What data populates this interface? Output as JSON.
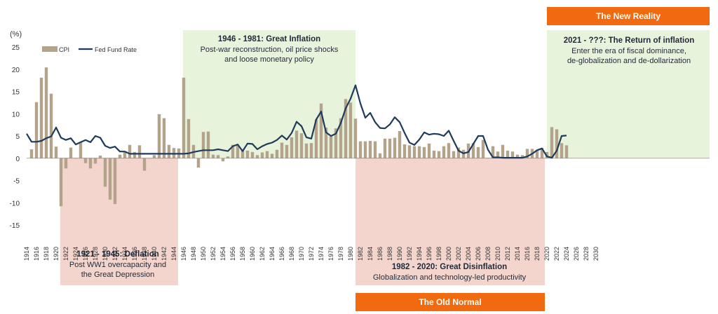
{
  "chart_data": {
    "type": "bar",
    "y_unit_label": "(%)",
    "ylim": [
      -15,
      25
    ],
    "yticks": [
      25,
      20,
      15,
      10,
      5,
      0,
      -5,
      -10,
      -15
    ],
    "xlim": [
      1914,
      2030
    ],
    "x_tick_step": 2,
    "grid": false,
    "legend": {
      "placement": "top-left",
      "items": [
        {
          "name": "CPI",
          "kind": "bar",
          "color": "#b3a38a"
        },
        {
          "name": "Fed Fund Rate",
          "kind": "line",
          "color": "#1f3b5c"
        }
      ]
    },
    "series": [
      {
        "name": "CPI",
        "type": "bar",
        "color": "#b3a38a",
        "x": [
          1915,
          1916,
          1917,
          1918,
          1919,
          1920,
          1921,
          1922,
          1923,
          1924,
          1925,
          1926,
          1927,
          1928,
          1929,
          1930,
          1931,
          1932,
          1933,
          1934,
          1935,
          1936,
          1937,
          1938,
          1939,
          1940,
          1941,
          1942,
          1943,
          1944,
          1945,
          1946,
          1947,
          1948,
          1949,
          1950,
          1951,
          1952,
          1953,
          1954,
          1955,
          1956,
          1957,
          1958,
          1959,
          1960,
          1961,
          1962,
          1963,
          1964,
          1965,
          1966,
          1967,
          1968,
          1969,
          1970,
          1971,
          1972,
          1973,
          1974,
          1975,
          1976,
          1977,
          1978,
          1979,
          1980,
          1981,
          1982,
          1983,
          1984,
          1985,
          1986,
          1987,
          1988,
          1989,
          1990,
          1991,
          1992,
          1993,
          1994,
          1995,
          1996,
          1997,
          1998,
          1999,
          2000,
          2001,
          2002,
          2003,
          2004,
          2005,
          2006,
          2007,
          2008,
          2009,
          2010,
          2011,
          2012,
          2013,
          2014,
          2015,
          2016,
          2017,
          2018,
          2019,
          2020,
          2021,
          2022,
          2023,
          2024
        ],
        "values": [
          2,
          12.6,
          18.1,
          20.4,
          14.5,
          2.6,
          -10.8,
          -2.3,
          2.4,
          0,
          3.5,
          -1.1,
          -2.3,
          -1.2,
          0.6,
          -6.4,
          -9.3,
          -10.3,
          0.8,
          1.5,
          3,
          1.4,
          2.9,
          -2.8,
          0,
          0.7,
          9.9,
          9,
          3,
          2.3,
          2.2,
          18.1,
          8.8,
          3,
          -2.1,
          5.9,
          6,
          0.8,
          0.7,
          -0.7,
          0.4,
          3,
          2.9,
          1.8,
          1.7,
          1.4,
          0.7,
          1.3,
          1.6,
          1,
          1.9,
          3.5,
          3,
          4.7,
          6.2,
          5.6,
          3.3,
          3.4,
          8.7,
          12.3,
          6.9,
          4.9,
          6.7,
          9,
          13.3,
          12.5,
          8.9,
          3.8,
          3.8,
          3.9,
          3.8,
          1.1,
          4.4,
          4.4,
          4.6,
          6.1,
          3.1,
          2.9,
          2.7,
          2.7,
          2.5,
          3.3,
          1.7,
          1.6,
          2.7,
          3.4,
          1.6,
          2.4,
          1.9,
          3.3,
          3.4,
          2.5,
          4.1,
          0.1,
          2.7,
          1.5,
          3,
          1.7,
          1.5,
          0.8,
          0.7,
          2.1,
          2.1,
          1.9,
          2.3,
          1.4,
          7,
          6.5,
          3.4,
          2.9
        ]
      },
      {
        "name": "Fed Fund Rate",
        "type": "line",
        "color": "#1f3b5c",
        "x": [
          1914,
          1915,
          1916,
          1917,
          1918,
          1919,
          1920,
          1921,
          1922,
          1923,
          1924,
          1925,
          1926,
          1927,
          1928,
          1929,
          1930,
          1931,
          1932,
          1933,
          1934,
          1935,
          1936,
          1937,
          1938,
          1939,
          1940,
          1941,
          1942,
          1943,
          1944,
          1945,
          1946,
          1947,
          1948,
          1949,
          1950,
          1951,
          1952,
          1953,
          1954,
          1955,
          1956,
          1957,
          1958,
          1959,
          1960,
          1961,
          1962,
          1963,
          1964,
          1965,
          1966,
          1967,
          1968,
          1969,
          1970,
          1971,
          1972,
          1973,
          1974,
          1975,
          1976,
          1977,
          1978,
          1979,
          1980,
          1981,
          1982,
          1983,
          1984,
          1985,
          1986,
          1987,
          1988,
          1989,
          1990,
          1991,
          1992,
          1993,
          1994,
          1995,
          1996,
          1997,
          1998,
          1999,
          2000,
          2001,
          2002,
          2003,
          2004,
          2005,
          2006,
          2007,
          2008,
          2009,
          2010,
          2011,
          2012,
          2013,
          2014,
          2015,
          2016,
          2017,
          2018,
          2019,
          2020,
          2021,
          2022,
          2023,
          2024
        ],
        "values": [
          5.5,
          3.7,
          3.7,
          3.9,
          4.5,
          4.9,
          6.9,
          4.6,
          4.1,
          4.5,
          3.1,
          3.6,
          4.1,
          3.6,
          5.0,
          4.6,
          2.8,
          2.3,
          2.6,
          1.5,
          1.5,
          1.0,
          1.0,
          1.0,
          1.0,
          1.0,
          1.0,
          1.0,
          1.0,
          1.0,
          1.0,
          1.0,
          1.0,
          1.1,
          1.4,
          1.6,
          1.8,
          1.8,
          1.8,
          2.0,
          1.8,
          1.6,
          2.7,
          3.1,
          1.6,
          3.3,
          3.2,
          2.0,
          2.7,
          3.2,
          3.5,
          4.1,
          5.1,
          4.2,
          5.7,
          8.2,
          7.2,
          4.7,
          4.4,
          8.7,
          10.5,
          5.8,
          5.0,
          5.5,
          7.9,
          11.2,
          13.4,
          16.4,
          12.3,
          9.1,
          10.2,
          8.1,
          6.8,
          6.7,
          7.6,
          9.2,
          8.1,
          5.7,
          3.5,
          3.0,
          4.2,
          5.8,
          5.3,
          5.5,
          5.4,
          5.0,
          6.2,
          3.9,
          1.7,
          1.1,
          1.4,
          3.2,
          5.0,
          5.0,
          1.9,
          0.2,
          0.2,
          0.1,
          0.1,
          0.1,
          0.1,
          0.1,
          0.4,
          1.0,
          1.8,
          2.2,
          0.4,
          0.1,
          1.7,
          5.0,
          5.1
        ]
      }
    ],
    "annotations": [
      {
        "id": "great_inflation",
        "title": "1946 - 1981: Great Inflation",
        "lines": [
          "Post-war reconstruction, oil price shocks",
          "and loose monetary policy"
        ]
      },
      {
        "id": "deflation",
        "title": "1921 - 1945: Deflation",
        "lines": [
          "Post WW1 overcapacity and",
          "the Great Depression"
        ]
      },
      {
        "id": "great_disinflation",
        "title": "1982 - 2020: Great Disinflation",
        "lines": [
          "Globalization and technology-led productivity"
        ]
      },
      {
        "id": "return_of_inflation",
        "title": "2021 - ???:  The Return of inflation",
        "lines": [
          "Enter the era of fiscal dominance,",
          "de-globalization and de-dollarization"
        ]
      }
    ],
    "banners": {
      "top": "The New Reality",
      "bottom": "The Old Normal"
    },
    "colors": {
      "green_region": "#e8f3dc",
      "red_region": "#f4d5cd",
      "banner": "#f26a10"
    }
  }
}
